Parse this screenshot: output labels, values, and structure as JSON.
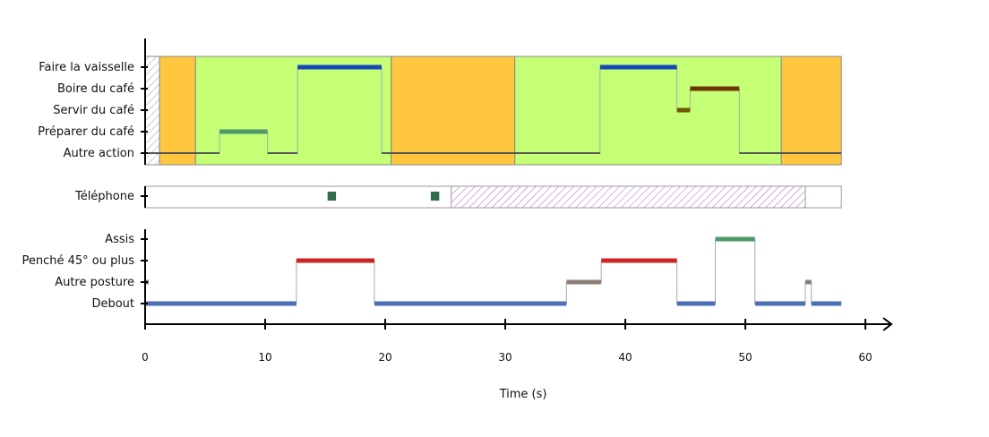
{
  "chart_data": {
    "type": "timeline",
    "xlabel": "Time (s)",
    "xlim": [
      0,
      58
    ],
    "xticks": [
      0,
      10,
      20,
      30,
      40,
      50,
      60
    ],
    "colors": {
      "activity_bg": "#c5ff76",
      "alt_bg": "#ffc63f",
      "axis": "#000000",
      "hatch_border": "#888888",
      "phone_hatch": "#aa66bb"
    },
    "panels": [
      {
        "name": "actions",
        "rows": [
          "Faire la vaisselle",
          "Boire du café",
          "Servir du café",
          "Préparer du café",
          "Autre action"
        ],
        "backgrounds": [
          {
            "start": 0,
            "end": 1.2,
            "fill": "hatch"
          },
          {
            "start": 1.2,
            "end": 4.2,
            "fill": "#ffc63f"
          },
          {
            "start": 4.2,
            "end": 20.5,
            "fill": "#c5ff76"
          },
          {
            "start": 20.5,
            "end": 30.8,
            "fill": "#ffc63f"
          },
          {
            "start": 30.8,
            "end": 53.0,
            "fill": "#c5ff76"
          },
          {
            "start": 53.0,
            "end": 58.0,
            "fill": "#ffc63f"
          }
        ],
        "segments": [
          {
            "row": "Autre action",
            "start": 0,
            "end": 6.2,
            "color": "#555555"
          },
          {
            "row": "Préparer du café",
            "start": 6.2,
            "end": 10.2,
            "color": "#4f9a6a"
          },
          {
            "row": "Autre action",
            "start": 10.2,
            "end": 12.7,
            "color": "#555555"
          },
          {
            "row": "Faire la vaisselle",
            "start": 12.7,
            "end": 19.7,
            "color": "#1547b8"
          },
          {
            "row": "Autre action",
            "start": 19.7,
            "end": 37.9,
            "color": "#555555"
          },
          {
            "row": "Faire la vaisselle",
            "start": 37.9,
            "end": 44.3,
            "color": "#1547b8"
          },
          {
            "row": "Servir du café",
            "start": 44.3,
            "end": 45.4,
            "color": "#6b5a00"
          },
          {
            "row": "Boire du café",
            "start": 45.4,
            "end": 49.5,
            "color": "#6b3500"
          },
          {
            "row": "Autre action",
            "start": 49.5,
            "end": 58.0,
            "color": "#555555"
          }
        ]
      },
      {
        "name": "phone",
        "rows": [
          "Téléphone"
        ],
        "markers": [
          {
            "start": 15.2,
            "end": 15.9,
            "color": "#336b4f"
          },
          {
            "start": 23.8,
            "end": 24.5,
            "color": "#336b4f"
          }
        ],
        "hatched": [
          {
            "start": 25.5,
            "end": 55.0,
            "color": "#aa66bb"
          }
        ]
      },
      {
        "name": "posture",
        "rows": [
          "Assis",
          "Penché 45° ou plus",
          "Autre posture",
          "Debout"
        ],
        "segments": [
          {
            "row": "Autre posture",
            "start": 0,
            "end": 0.3,
            "color": "#8a7f77"
          },
          {
            "row": "Debout",
            "start": 0,
            "end": 12.6,
            "color": "#4a6fb5"
          },
          {
            "row": "Penché 45° ou plus",
            "start": 12.6,
            "end": 19.1,
            "color": "#cc2424"
          },
          {
            "row": "Debout",
            "start": 19.1,
            "end": 35.1,
            "color": "#4a6fb5"
          },
          {
            "row": "Autre posture",
            "start": 35.1,
            "end": 38.0,
            "color": "#8a7f77"
          },
          {
            "row": "Penché 45° ou plus",
            "start": 38.0,
            "end": 44.3,
            "color": "#cc2424"
          },
          {
            "row": "Debout",
            "start": 44.3,
            "end": 47.5,
            "color": "#4a6fb5"
          },
          {
            "row": "Assis",
            "start": 47.5,
            "end": 50.8,
            "color": "#4f9a6a"
          },
          {
            "row": "Debout",
            "start": 50.8,
            "end": 55.0,
            "color": "#4a6fb5"
          },
          {
            "row": "Autre posture",
            "start": 55.0,
            "end": 55.5,
            "color": "#8a7f77"
          },
          {
            "row": "Debout",
            "start": 55.5,
            "end": 58.0,
            "color": "#4a6fb5"
          }
        ]
      }
    ]
  }
}
